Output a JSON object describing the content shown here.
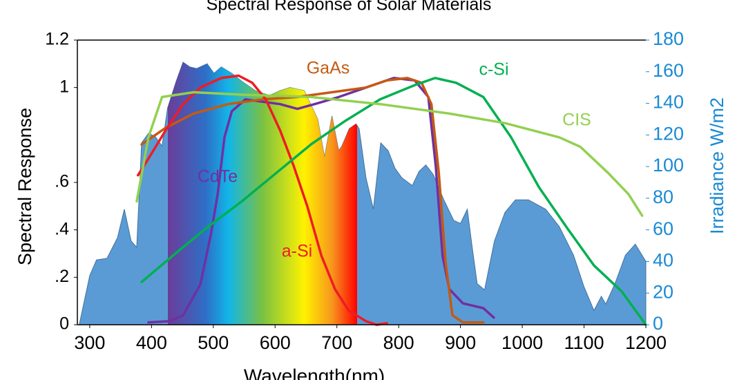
{
  "chart_data": {
    "type": "line",
    "title": "Spectral Response of Solar Materials",
    "x_label": "Wavelength(nm)",
    "y_label": "Spectral Response",
    "y2_label": "Irradiance W/m2",
    "xlim": [
      280,
      1200
    ],
    "xticks": [
      300,
      400,
      500,
      600,
      700,
      800,
      900,
      1000,
      1100,
      1200
    ],
    "ylim": [
      0,
      1.2
    ],
    "yticks": [
      0,
      {
        "value": 0.2,
        "label": ".2"
      },
      {
        "value": 0.4,
        "label": ".4"
      },
      {
        "value": 0.6,
        "label": ".6"
      },
      1,
      1.2
    ],
    "y2lim": [
      0,
      180
    ],
    "y2ticks": [
      0,
      20,
      40,
      60,
      80,
      100,
      120,
      140,
      160,
      180
    ],
    "series": [
      {
        "name": "CdTe",
        "color": "#7030a0",
        "x": [
          395,
          429,
          451,
          479,
          496,
          507,
          518,
          530,
          552,
          580,
          608,
          636,
          664,
          703,
          747,
          792,
          826,
          848,
          860,
          871,
          882,
          904,
          937,
          954
        ],
        "values": [
          0.01,
          0.015,
          0.04,
          0.17,
          0.38,
          0.55,
          0.79,
          0.9,
          0.95,
          0.94,
          0.93,
          0.91,
          0.93,
          0.96,
          1.0,
          1.04,
          1.03,
          0.96,
          0.67,
          0.29,
          0.15,
          0.09,
          0.07,
          0.03
        ]
      },
      {
        "name": "GaAs",
        "color": "#c55a11",
        "x": [
          384,
          423,
          468,
          524,
          580,
          636,
          692,
          747,
          781,
          814,
          837,
          853,
          865,
          876,
          887,
          904,
          937
        ],
        "values": [
          0.76,
          0.83,
          0.89,
          0.93,
          0.95,
          0.96,
          0.98,
          1.0,
          1.03,
          1.04,
          1.02,
          0.93,
          0.64,
          0.26,
          0.04,
          0.01,
          0.01
        ]
      },
      {
        "name": "a-Si",
        "color": "#ee1c25",
        "x": [
          378,
          395,
          423,
          451,
          479,
          513,
          541,
          563,
          585,
          608,
          630,
          652,
          675,
          697,
          719,
          747,
          764,
          781
        ],
        "values": [
          0.63,
          0.7,
          0.82,
          0.93,
          1.0,
          1.04,
          1.05,
          1.02,
          0.95,
          0.82,
          0.67,
          0.5,
          0.29,
          0.15,
          0.06,
          0.015,
          0,
          0.006
        ]
      },
      {
        "name": "c-Si",
        "color": "#00b050",
        "x": [
          384,
          434,
          490,
          546,
          602,
          658,
          714,
          770,
          826,
          859,
          893,
          937,
          982,
          1027,
          1072,
          1116,
          1161,
          1200
        ],
        "values": [
          0.18,
          0.29,
          0.41,
          0.52,
          0.64,
          0.76,
          0.86,
          0.95,
          1.01,
          1.04,
          1.02,
          0.96,
          0.79,
          0.58,
          0.41,
          0.25,
          0.14,
          0
        ]
      },
      {
        "name": "CIS",
        "color": "#92d050",
        "x": [
          376,
          395,
          417,
          468,
          546,
          658,
          770,
          882,
          972,
          1060,
          1094,
          1139,
          1172,
          1194
        ],
        "values": [
          0.52,
          0.79,
          0.96,
          0.98,
          0.97,
          0.96,
          0.93,
          0.89,
          0.85,
          0.79,
          0.75,
          0.64,
          0.55,
          0.46
        ]
      },
      {
        "type": "area",
        "axis": "y2",
        "color": "#5b9bd5",
        "x": [
          283,
          300,
          311,
          328,
          345,
          356,
          367,
          376,
          384,
          395,
          406,
          417,
          426,
          440,
          451,
          462,
          473,
          490,
          501,
          513,
          530,
          546,
          568,
          591,
          608,
          624,
          647,
          669,
          680,
          692,
          703,
          708,
          720,
          731,
          736,
          747,
          759,
          771,
          783,
          794,
          805,
          822,
          833,
          844,
          856,
          873,
          889,
          900,
          911,
          919,
          927,
          939,
          955,
          972,
          989,
          1010,
          1038,
          1060,
          1083,
          1100,
          1116,
          1128,
          1135,
          1150,
          1167,
          1183,
          1200
        ],
        "values": [
          0,
          31,
          41,
          42,
          55,
          73,
          53,
          49,
          115,
          121,
          119,
          113,
          137,
          154,
          166,
          163,
          162,
          165,
          159,
          163,
          159,
          154,
          148,
          145,
          148,
          150,
          148,
          130,
          106,
          132,
          110,
          113,
          124,
          127,
          124,
          93,
          73,
          115,
          110,
          99,
          93,
          88,
          97,
          101,
          95,
          79,
          66,
          64,
          73,
          49,
          26,
          22,
          53,
          71,
          79,
          79,
          73,
          62,
          44,
          24,
          9,
          18,
          13,
          26,
          44,
          51,
          40
        ]
      }
    ]
  }
}
